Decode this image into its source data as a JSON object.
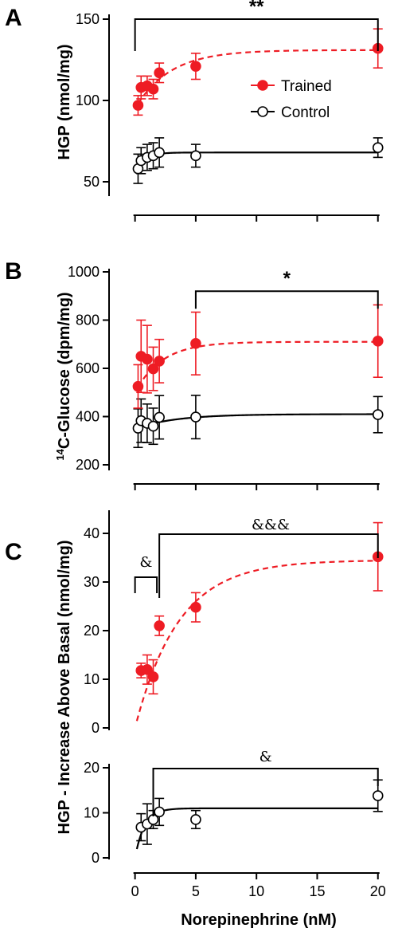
{
  "colors": {
    "trained": "#ee1c24",
    "control": "#000000"
  },
  "chart_data": [
    {
      "type": "scatter",
      "panel": "A",
      "ylabel": "HGP (nmol/mg)",
      "ylim": [
        40,
        160
      ],
      "yticks": [
        50,
        100,
        150
      ],
      "xlim": [
        -0.5,
        21
      ],
      "legend": {
        "placement": "right",
        "entries": [
          "Trained",
          "Control"
        ]
      },
      "series": [
        {
          "name": "Trained",
          "style": "filled",
          "fit": {
            "a": 95,
            "b": 36,
            "k": 0.35
          },
          "x": [
            0.25,
            0.5,
            1,
            1.5,
            2,
            5,
            20
          ],
          "y": [
            97,
            108,
            109,
            107,
            117,
            121,
            132
          ],
          "err": [
            6,
            7,
            6,
            6,
            6,
            8,
            12
          ]
        },
        {
          "name": "Control",
          "style": "open",
          "fit": {
            "a": 56,
            "b": 12,
            "k": 1.3
          },
          "x": [
            0.25,
            0.5,
            1,
            1.5,
            2,
            5,
            20
          ],
          "y": [
            58,
            63,
            65,
            66,
            68,
            66,
            71
          ],
          "err": [
            9,
            8,
            8,
            8,
            9,
            7,
            6
          ]
        }
      ],
      "annotations": [
        {
          "x1": 0,
          "x2": 20,
          "y": 150,
          "label": "**"
        }
      ]
    },
    {
      "type": "scatter",
      "panel": "B",
      "ylabel": "14C-Glucose (dpm/mg)",
      "ylabel_sup": "14",
      "ylabel_rest": "C-Glucose (dpm/mg)",
      "ylim": [
        150,
        1000
      ],
      "yticks": [
        200,
        400,
        600,
        800,
        1000
      ],
      "xlim": [
        -0.5,
        21
      ],
      "series": [
        {
          "name": "Trained",
          "style": "filled",
          "fit": {
            "a": 500,
            "b": 210,
            "k": 0.45
          },
          "x": [
            0.25,
            0.5,
            1,
            1.5,
            2,
            5,
            20
          ],
          "y": [
            525,
            650,
            638,
            598,
            630,
            703,
            713
          ],
          "err": [
            90,
            150,
            140,
            90,
            90,
            130,
            150
          ]
        },
        {
          "name": "Control",
          "style": "open",
          "fit": {
            "a": 350,
            "b": 60,
            "k": 0.3
          },
          "x": [
            0.25,
            0.5,
            1,
            1.5,
            2,
            5,
            20
          ],
          "y": [
            352,
            383,
            372,
            360,
            397,
            398,
            408
          ],
          "err": [
            80,
            90,
            80,
            75,
            90,
            90,
            75
          ]
        }
      ],
      "annotations": [
        {
          "x1": 5,
          "x2": 20,
          "y": 920,
          "label": "*"
        }
      ]
    },
    {
      "type": "scatter",
      "panel": "C",
      "ylabel": "HGP - Increase Above Basal (nmol/mg)",
      "xlabel": "Norepinephrine (nM)",
      "xticks": [
        0,
        5,
        10,
        15,
        20
      ],
      "xlim": [
        -0.5,
        21
      ],
      "subplots": [
        {
          "ylim": [
            0,
            45
          ],
          "yticks": [
            0,
            10,
            20,
            30,
            40
          ],
          "series": [
            {
              "name": "Trained",
              "style": "filled",
              "fit": {
                "a": 0,
                "b": 34.5,
                "k": 0.28
              },
              "x": [
                0.5,
                1,
                1.5,
                2,
                5,
                20
              ],
              "y": [
                11.8,
                12,
                10.5,
                21,
                24.8,
                35.2
              ],
              "err": [
                1.5,
                3,
                3.5,
                2,
                3,
                7
              ]
            }
          ],
          "annotations": [
            {
              "x1": 0,
              "x2": 1.8,
              "y": 38,
              "label": "&"
            },
            {
              "x1": 2,
              "x2": 20,
              "y": 43,
              "label": "&&&"
            }
          ]
        },
        {
          "ylim": [
            0,
            20
          ],
          "yticks": [
            0,
            10,
            20
          ],
          "series": [
            {
              "name": "Control",
              "style": "open",
              "fit": {
                "a": 0,
                "b": 11,
                "k": 1.3
              },
              "x": [
                0.5,
                1,
                1.5,
                2,
                5,
                20
              ],
              "y": [
                6.8,
                7.5,
                8.5,
                10.2,
                8.5,
                13.8
              ],
              "err": [
                3,
                4.5,
                2,
                3,
                2,
                3.5
              ]
            }
          ],
          "annotations": [
            {
              "x1": 1.5,
              "x2": 20,
              "y": 18,
              "label": "&"
            }
          ]
        }
      ]
    }
  ]
}
